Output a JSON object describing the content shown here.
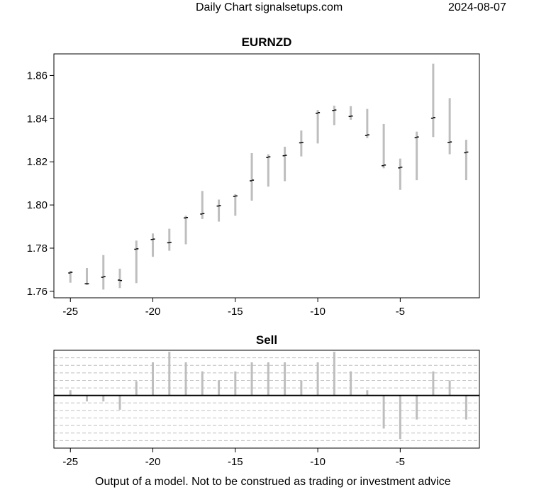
{
  "header": {
    "title": "Daily Chart signalsetups.com",
    "date": "2024-08-07"
  },
  "footer": {
    "disclaimer": "Output of a model. Not to be construed as trading or investment advice"
  },
  "chart_data": [
    {
      "type": "ohlc",
      "title": "EURNZD",
      "xlabel": "",
      "ylabel": "",
      "xlim": [
        -26,
        -0.2
      ],
      "ylim": [
        1.757,
        1.87
      ],
      "x_ticks": [
        -25,
        -20,
        -15,
        -10,
        -5
      ],
      "y_ticks": [
        1.76,
        1.78,
        1.8,
        1.82,
        1.84,
        1.86
      ],
      "y_tick_labels": [
        "1.76",
        "1.78",
        "1.80",
        "1.82",
        "1.84",
        "1.86"
      ],
      "grid": false,
      "colors": {
        "range_bar": "#bebebe",
        "tick": "#000000"
      },
      "bars": [
        {
          "x": -25,
          "high": 1.7695,
          "low": 1.764,
          "open": 1.7685,
          "close": 1.7688
        },
        {
          "x": -24,
          "high": 1.7708,
          "low": 1.763,
          "open": 1.7635,
          "close": 1.7635
        },
        {
          "x": -23,
          "high": 1.7768,
          "low": 1.7608,
          "open": 1.7665,
          "close": 1.7668
        },
        {
          "x": -22,
          "high": 1.7705,
          "low": 1.7615,
          "open": 1.7652,
          "close": 1.765
        },
        {
          "x": -21,
          "high": 1.7835,
          "low": 1.7638,
          "open": 1.7795,
          "close": 1.7797
        },
        {
          "x": -20,
          "high": 1.7868,
          "low": 1.776,
          "open": 1.784,
          "close": 1.7842
        },
        {
          "x": -19,
          "high": 1.789,
          "low": 1.7788,
          "open": 1.7825,
          "close": 1.7827
        },
        {
          "x": -18,
          "high": 1.795,
          "low": 1.7818,
          "open": 1.794,
          "close": 1.7942
        },
        {
          "x": -17,
          "high": 1.8065,
          "low": 1.7935,
          "open": 1.7958,
          "close": 1.796
        },
        {
          "x": -16,
          "high": 1.8025,
          "low": 1.7923,
          "open": 1.7995,
          "close": 1.7997
        },
        {
          "x": -15,
          "high": 1.805,
          "low": 1.795,
          "open": 1.804,
          "close": 1.8042
        },
        {
          "x": -14,
          "high": 1.824,
          "low": 1.802,
          "open": 1.8112,
          "close": 1.8115
        },
        {
          "x": -13,
          "high": 1.8235,
          "low": 1.8085,
          "open": 1.822,
          "close": 1.8223
        },
        {
          "x": -12,
          "high": 1.827,
          "low": 1.811,
          "open": 1.8228,
          "close": 1.823
        },
        {
          "x": -11,
          "high": 1.8345,
          "low": 1.8225,
          "open": 1.8288,
          "close": 1.829
        },
        {
          "x": -10,
          "high": 1.844,
          "low": 1.8285,
          "open": 1.8425,
          "close": 1.8428
        },
        {
          "x": -9,
          "high": 1.846,
          "low": 1.837,
          "open": 1.8438,
          "close": 1.844
        },
        {
          "x": -8,
          "high": 1.8458,
          "low": 1.8395,
          "open": 1.841,
          "close": 1.8412
        },
        {
          "x": -7,
          "high": 1.8445,
          "low": 1.831,
          "open": 1.8322,
          "close": 1.8325
        },
        {
          "x": -6,
          "high": 1.8375,
          "low": 1.817,
          "open": 1.8182,
          "close": 1.8185
        },
        {
          "x": -5,
          "high": 1.8215,
          "low": 1.807,
          "open": 1.8172,
          "close": 1.8175
        },
        {
          "x": -4,
          "high": 1.834,
          "low": 1.8115,
          "open": 1.8312,
          "close": 1.8315
        },
        {
          "x": -3,
          "high": 1.8655,
          "low": 1.8315,
          "open": 1.8402,
          "close": 1.8405
        },
        {
          "x": -2,
          "high": 1.8495,
          "low": 1.8235,
          "open": 1.829,
          "close": 1.8292
        },
        {
          "x": -1,
          "high": 1.8302,
          "low": 1.8115,
          "open": 1.8242,
          "close": 1.8245
        }
      ]
    },
    {
      "type": "bar",
      "title": "Sell",
      "xlabel": "",
      "ylabel": "",
      "xlim": [
        -26,
        -0.2
      ],
      "ylim": [
        -3.5,
        3.0
      ],
      "x_ticks": [
        -25,
        -20,
        -15,
        -10,
        -5
      ],
      "grid_y_dashed": [
        -3,
        -2.5,
        -2,
        -1.5,
        -1,
        -0.5,
        0.5,
        1,
        1.5,
        2,
        2.5
      ],
      "zero_line": true,
      "colors": {
        "bar": "#bebebe",
        "grid": "#c0c0c0",
        "zero_line": "#000000"
      },
      "x": [
        -25,
        -24,
        -23,
        -22,
        -21,
        -20,
        -19,
        -18,
        -17,
        -16,
        -15,
        -14,
        -13,
        -12,
        -11,
        -10,
        -9,
        -8,
        -7,
        -6,
        -5,
        -4,
        -3,
        -2,
        -1
      ],
      "values": [
        0.35,
        -0.4,
        -0.4,
        -0.95,
        0.95,
        2.2,
        2.9,
        2.2,
        1.6,
        1.0,
        1.6,
        2.2,
        2.2,
        2.2,
        1.0,
        2.2,
        2.9,
        1.6,
        0.35,
        -2.2,
        -2.9,
        -1.6,
        1.6,
        1.0,
        -1.6
      ]
    }
  ]
}
